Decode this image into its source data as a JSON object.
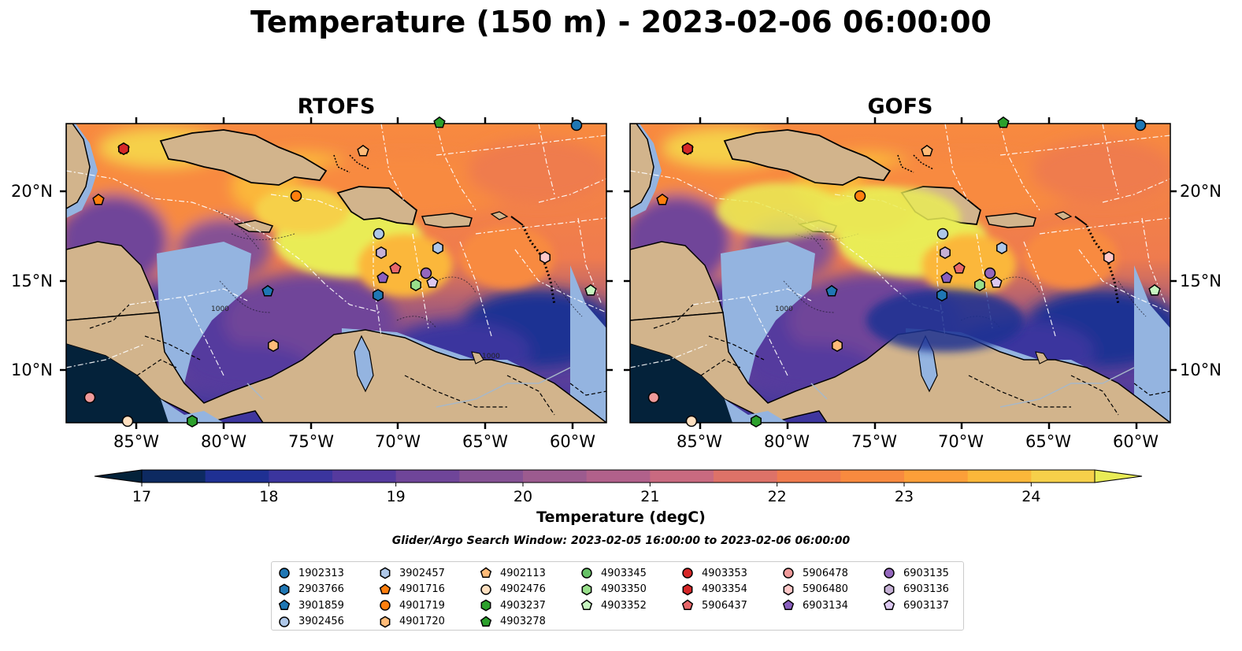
{
  "title": "Temperature (150 m) - 2023-02-06 06:00:00",
  "panels": [
    {
      "id": "rtofs",
      "title": "RTOFS"
    },
    {
      "id": "gofs",
      "title": "GOFS"
    }
  ],
  "map": {
    "lon_ticks": [
      "85°W",
      "80°W",
      "75°W",
      "70°W",
      "65°W",
      "60°W"
    ],
    "lat_ticks": [
      "20°N",
      "15°N",
      "10°N"
    ],
    "contour_label": "1000",
    "colors": {
      "land": "#d2b48c",
      "shallow": "#94b4e0",
      "coastline": "#000000",
      "eez": "#ffffff"
    }
  },
  "colorbar": {
    "label": "Temperature (degC)",
    "ticks": [
      "17",
      "18",
      "19",
      "20",
      "21",
      "22",
      "23",
      "24"
    ],
    "range": [
      17,
      24.5
    ],
    "colors": [
      "#04223a",
      "#0d2a61",
      "#1f3093",
      "#3b359e",
      "#553a9e",
      "#6f4599",
      "#855194",
      "#9c5b8f",
      "#b1618b",
      "#c96a80",
      "#dd7268",
      "#ef7b4e",
      "#f88a3f",
      "#fc9f39",
      "#fbb73a",
      "#f6d04a",
      "#e9ec56"
    ]
  },
  "search_window": "Glider/Argo Search Window: 2023-02-05 16:00:00 to 2023-02-06 06:00:00",
  "legend": [
    {
      "label": "1902313",
      "color": "#1f77b4",
      "shape": "circle"
    },
    {
      "label": "2903766",
      "color": "#1f77b4",
      "shape": "hexagon"
    },
    {
      "label": "3901859",
      "color": "#1f77b4",
      "shape": "pentagon"
    },
    {
      "label": "3902456",
      "color": "#aec7e8",
      "shape": "circle"
    },
    {
      "label": "3902457",
      "color": "#aec7e8",
      "shape": "hexagon"
    },
    {
      "label": "4901716",
      "color": "#ff7f0e",
      "shape": "pentagon"
    },
    {
      "label": "4901719",
      "color": "#ff7f0e",
      "shape": "circle"
    },
    {
      "label": "4901720",
      "color": "#ffbb78",
      "shape": "hexagon"
    },
    {
      "label": "4902113",
      "color": "#ffbb78",
      "shape": "pentagon"
    },
    {
      "label": "4902476",
      "color": "#ffe0c0",
      "shape": "circle"
    },
    {
      "label": "4903237",
      "color": "#2ca02c",
      "shape": "hexagon"
    },
    {
      "label": "4903278",
      "color": "#2ca02c",
      "shape": "pentagon"
    },
    {
      "label": "4903345",
      "color": "#66c266",
      "shape": "circle"
    },
    {
      "label": "4903350",
      "color": "#98df8a",
      "shape": "hexagon"
    },
    {
      "label": "4903352",
      "color": "#c7f5c0",
      "shape": "pentagon"
    },
    {
      "label": "4903353",
      "color": "#d62728",
      "shape": "circle"
    },
    {
      "label": "4903354",
      "color": "#d62728",
      "shape": "hexagon"
    },
    {
      "label": "5906437",
      "color": "#e8676a",
      "shape": "pentagon"
    },
    {
      "label": "5906478",
      "color": "#f09a9a",
      "shape": "circle"
    },
    {
      "label": "5906480",
      "color": "#ffc8c8",
      "shape": "hexagon"
    },
    {
      "label": "6903134",
      "color": "#8a5fbf",
      "shape": "pentagon"
    },
    {
      "label": "6903135",
      "color": "#9467bd",
      "shape": "circle"
    },
    {
      "label": "6903136",
      "color": "#c5b0d5",
      "shape": "hexagon"
    },
    {
      "label": "6903137",
      "color": "#dcc8f0",
      "shape": "pentagon"
    }
  ]
}
